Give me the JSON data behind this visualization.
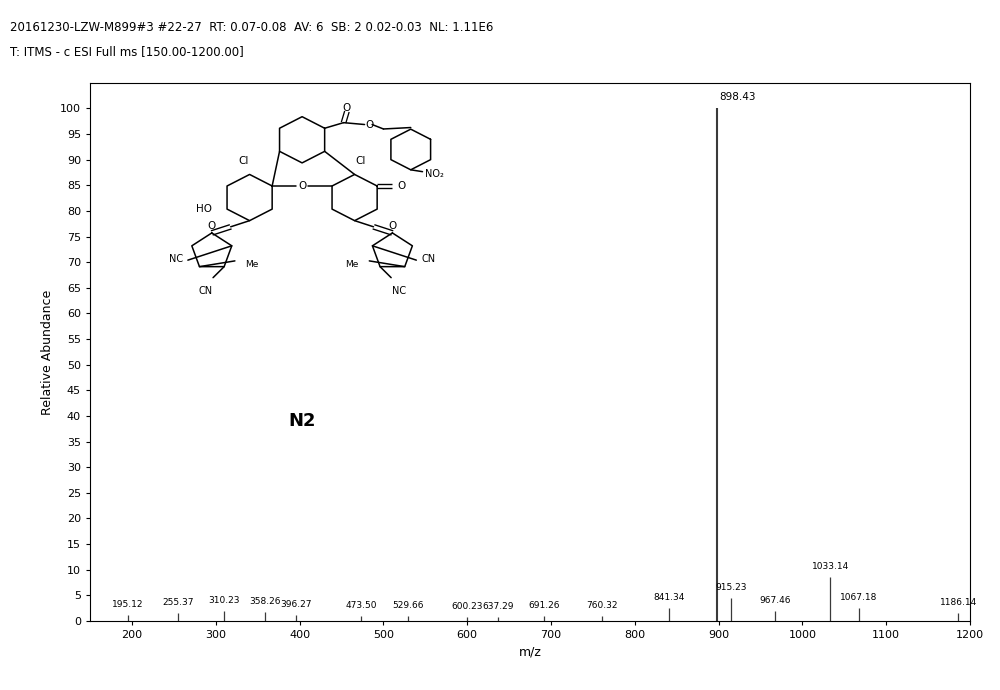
{
  "title_line1": "20161230-LZW-M899#3 #22-27  RT: 0.07-0.08  AV: 6  SB: 2 0.02-0.03  NL: 1.11E6",
  "title_line2": "T: ITMS - c ESI Full ms [150.00-1200.00]",
  "xlabel": "m/z",
  "ylabel": "Relative Abundance",
  "xlim": [
    150,
    1200
  ],
  "ylim": [
    0,
    105
  ],
  "yticks": [
    0,
    5,
    10,
    15,
    20,
    25,
    30,
    35,
    40,
    45,
    50,
    55,
    60,
    65,
    70,
    75,
    80,
    85,
    90,
    95,
    100
  ],
  "xticks": [
    200,
    300,
    400,
    500,
    600,
    700,
    800,
    900,
    1000,
    1100,
    1200
  ],
  "background_color": "#ffffff",
  "line_color": "#3a3a3a",
  "peaks": [
    {
      "mz": 195.12,
      "intensity": 1.2,
      "label": "195.12",
      "label_side": "right"
    },
    {
      "mz": 255.37,
      "intensity": 1.5,
      "label": "255.37",
      "label_side": "right"
    },
    {
      "mz": 310.23,
      "intensity": 2.0,
      "label": "310.23",
      "label_side": "right"
    },
    {
      "mz": 358.26,
      "intensity": 1.8,
      "label": "358.26",
      "label_side": "right"
    },
    {
      "mz": 396.27,
      "intensity": 1.2,
      "label": "396.27",
      "label_side": "right"
    },
    {
      "mz": 473.5,
      "intensity": 1.0,
      "label": "473.50",
      "label_side": "right"
    },
    {
      "mz": 529.66,
      "intensity": 1.0,
      "label": "529.66",
      "label_side": "right"
    },
    {
      "mz": 600.23,
      "intensity": 0.8,
      "label": "600.23",
      "label_side": "right"
    },
    {
      "mz": 637.29,
      "intensity": 0.8,
      "label": "637.29",
      "label_side": "right"
    },
    {
      "mz": 691.26,
      "intensity": 0.9,
      "label": "691.26",
      "label_side": "right"
    },
    {
      "mz": 760.32,
      "intensity": 1.0,
      "label": "760.32",
      "label_side": "right"
    },
    {
      "mz": 841.34,
      "intensity": 2.5,
      "label": "841.34",
      "label_side": "right"
    },
    {
      "mz": 898.43,
      "intensity": 100.0,
      "label": "898.43",
      "label_side": "right"
    },
    {
      "mz": 915.23,
      "intensity": 4.5,
      "label": "915.23",
      "label_side": "right"
    },
    {
      "mz": 967.46,
      "intensity": 2.0,
      "label": "967.46",
      "label_side": "right"
    },
    {
      "mz": 1033.14,
      "intensity": 8.5,
      "label": "1033.14",
      "label_side": "right"
    },
    {
      "mz": 1067.18,
      "intensity": 2.5,
      "label": "1067.18",
      "label_side": "right"
    },
    {
      "mz": 1186.14,
      "intensity": 1.5,
      "label": "1186.14",
      "label_side": "right"
    }
  ],
  "main_peak_mz": 898.43,
  "figsize": [
    10.0,
    6.9
  ],
  "dpi": 100,
  "label_fontsize": 7.0,
  "axis_fontsize": 9,
  "title_fontsize": 8.5
}
